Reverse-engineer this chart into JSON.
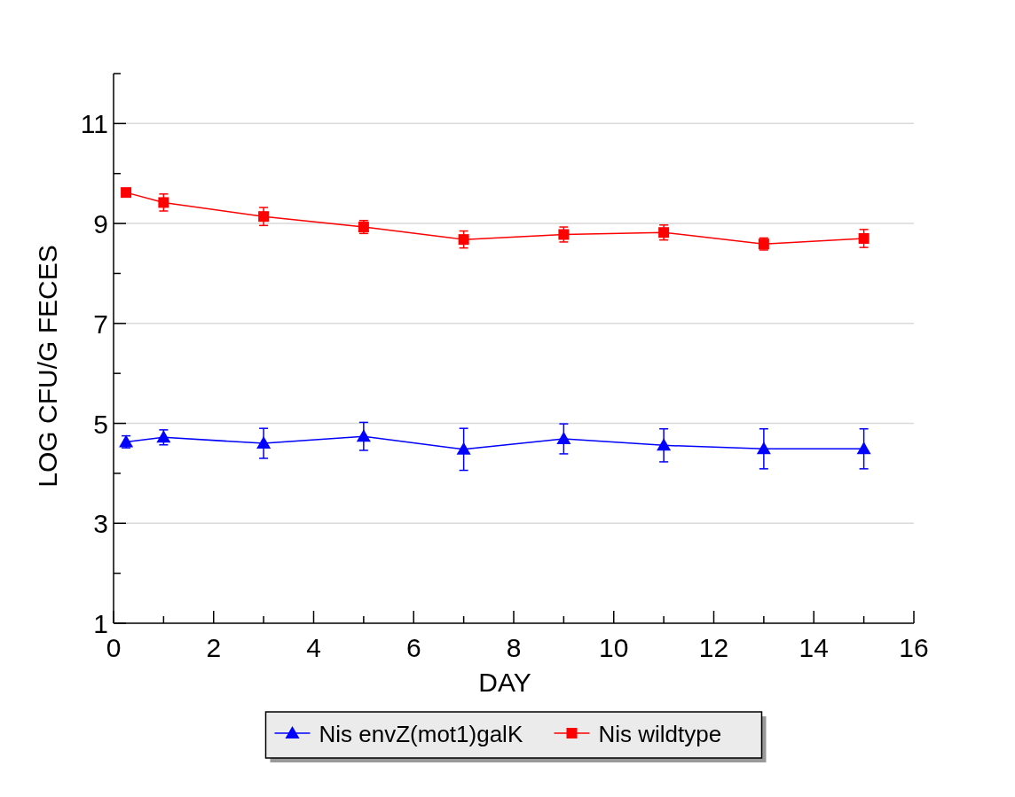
{
  "chart_data": {
    "type": "line",
    "xlabel": "DAY",
    "ylabel": "LOG CFU/G FECES",
    "xlim": [
      0,
      16
    ],
    "xticks": [
      0,
      {
        "value": 1,
        "label": null
      },
      2,
      {
        "value": 3,
        "label": null
      },
      4,
      {
        "value": 5,
        "label": null
      },
      6,
      {
        "value": 7,
        "label": null
      },
      8,
      {
        "value": 9,
        "label": null
      },
      10,
      {
        "value": 11,
        "label": null
      },
      12,
      {
        "value": 13,
        "label": null
      },
      14,
      {
        "value": 15,
        "label": null
      },
      16
    ],
    "ylim": [
      1,
      12
    ],
    "yticks": [
      1,
      {
        "value": 2,
        "label": null
      },
      3,
      {
        "value": 4,
        "label": null
      },
      5,
      {
        "value": 6,
        "label": null
      },
      7,
      {
        "value": 8,
        "label": null
      },
      9,
      {
        "value": 10,
        "label": null
      },
      11,
      {
        "value": 12,
        "label": null
      }
    ],
    "grid": "y",
    "legend": "bottom",
    "line_style": "solid",
    "x": [
      0.25,
      1,
      3,
      5,
      7,
      9,
      11,
      13,
      15
    ],
    "series": [
      {
        "name": "Nis envZ(mot1)galK",
        "color": "#0000ff",
        "marker": "triangle",
        "values": [
          4.63,
          4.72,
          4.6,
          4.74,
          4.48,
          4.69,
          4.56,
          4.49,
          4.49
        ],
        "errors": [
          0.12,
          0.15,
          0.3,
          0.28,
          0.42,
          0.3,
          0.33,
          0.4,
          0.4
        ]
      },
      {
        "name": "Nis wildtype",
        "color": "#ff0000",
        "marker": "square",
        "values": [
          9.62,
          9.42,
          9.14,
          8.93,
          8.68,
          8.78,
          8.82,
          8.59,
          8.7
        ],
        "errors": [
          null,
          0.17,
          0.18,
          0.13,
          0.17,
          0.15,
          0.15,
          0.12,
          0.18
        ]
      }
    ]
  }
}
